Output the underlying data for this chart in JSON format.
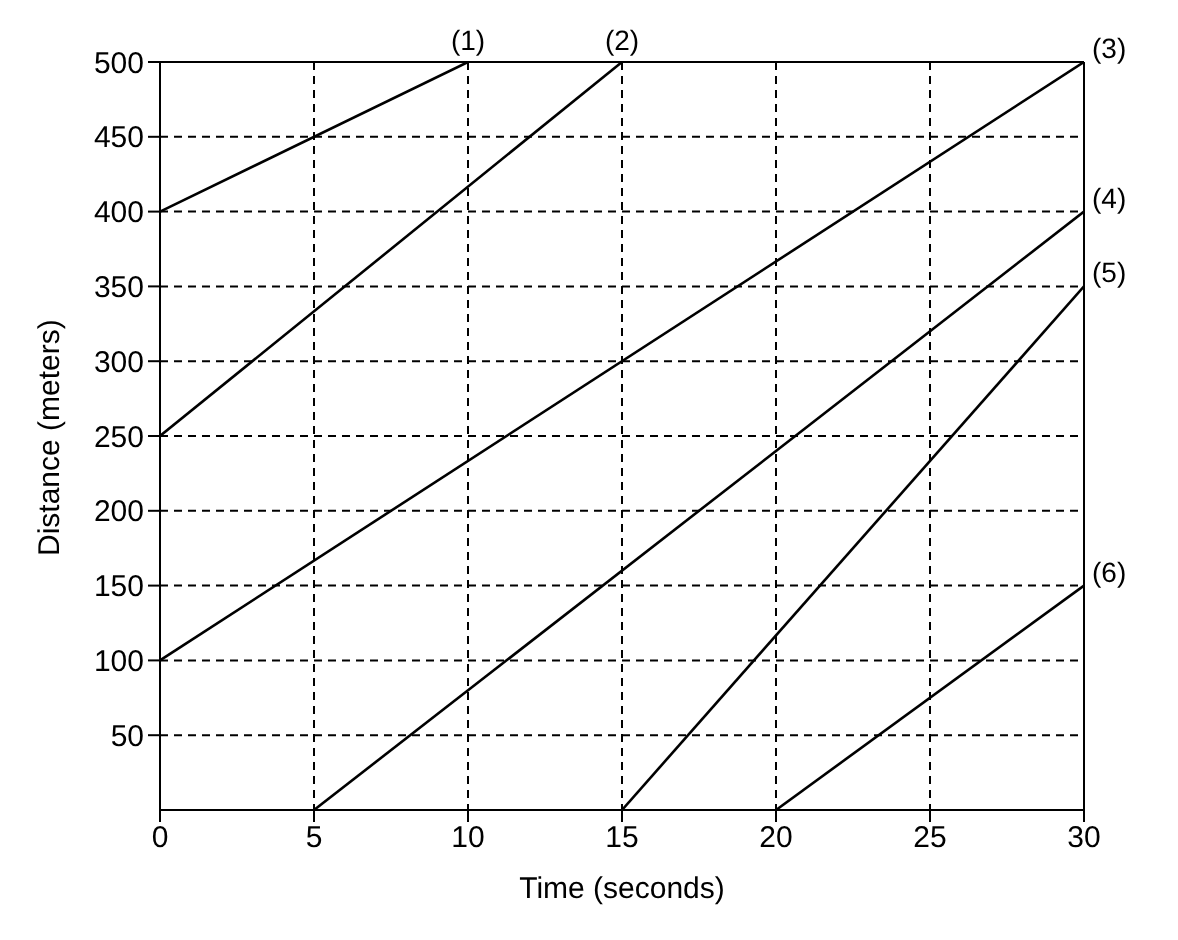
{
  "chart_data": {
    "type": "line",
    "xlabel": "Time (seconds)",
    "ylabel": "Distance (meters)",
    "xlim": [
      0,
      30
    ],
    "ylim": [
      0,
      500
    ],
    "xticks": [
      0,
      5,
      10,
      15,
      20,
      25,
      30
    ],
    "yticks": [
      50,
      100,
      150,
      200,
      250,
      300,
      350,
      400,
      450,
      500
    ],
    "grid": true,
    "legend": false,
    "marker": "none",
    "line_style": "solid",
    "series": [
      {
        "name": "(1)",
        "color": "#000000",
        "x": [
          0,
          10
        ],
        "values": [
          400,
          500
        ]
      },
      {
        "name": "(2)",
        "color": "#000000",
        "x": [
          0,
          15
        ],
        "values": [
          250,
          500
        ]
      },
      {
        "name": "(3)",
        "color": "#000000",
        "x": [
          0,
          30
        ],
        "values": [
          100,
          500
        ]
      },
      {
        "name": "(4)",
        "color": "#000000",
        "x": [
          5,
          30
        ],
        "values": [
          0,
          400
        ]
      },
      {
        "name": "(5)",
        "color": "#000000",
        "x": [
          15,
          30
        ],
        "values": [
          0,
          350
        ]
      },
      {
        "name": "(6)",
        "color": "#000000",
        "x": [
          20,
          30
        ],
        "values": [
          0,
          150
        ]
      }
    ]
  }
}
